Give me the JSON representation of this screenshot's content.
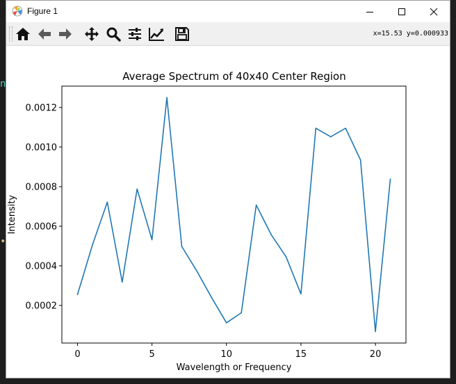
{
  "window": {
    "title": "Figure 1",
    "controls": [
      "minimize",
      "maximize",
      "close"
    ]
  },
  "toolbar": {
    "buttons": [
      "home-icon",
      "back-icon",
      "forward-icon",
      "pan-icon",
      "zoom-icon",
      "configure-subplots-icon",
      "edit-axis-icon",
      "save-icon"
    ],
    "coords": "x=15.53  y=0.000933"
  },
  "chart_data": {
    "type": "line",
    "title": "Average Spectrum of 40x40 Center Region",
    "xlabel": "Wavelength or Frequency",
    "ylabel": "Intensity",
    "x": [
      0,
      1,
      2,
      3,
      4,
      5,
      6,
      7,
      8,
      9,
      10,
      11,
      12,
      13,
      14,
      15,
      16,
      17,
      18,
      19,
      20,
      21
    ],
    "series": [
      {
        "color": "#1f77b4",
        "values": [
          0.000255,
          0.000505,
          0.000722,
          0.000318,
          0.000788,
          0.000532,
          0.00125,
          0.000498,
          0.000375,
          0.00024,
          0.000112,
          0.000163,
          0.000707,
          0.000558,
          0.000446,
          0.000258,
          0.001095,
          0.001052,
          0.001095,
          0.000935,
          6.8e-05,
          0.000838
        ]
      }
    ],
    "xlim": [
      -1.05,
      22.05
    ],
    "ylim": [
      1e-05,
      0.001308
    ],
    "xticks": [
      0,
      5,
      10,
      15,
      20
    ],
    "xticklabels": [
      "0",
      "5",
      "10",
      "15",
      "20"
    ],
    "yticks": [
      0.0002,
      0.0004,
      0.0006,
      0.0008,
      0.001,
      0.0012
    ],
    "yticklabels": [
      "0.0002",
      "0.0004",
      "0.0006",
      "0.0008",
      "0.0010",
      "0.0012"
    ],
    "grid": false
  }
}
